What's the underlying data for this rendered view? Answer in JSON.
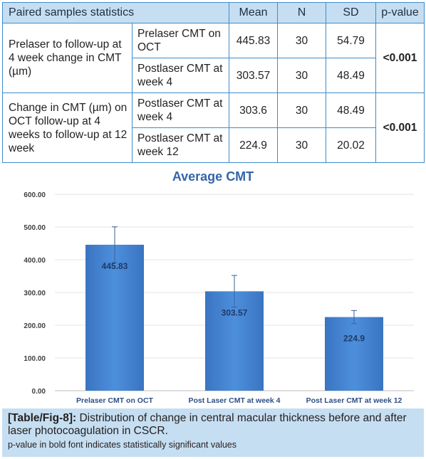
{
  "table": {
    "headers": [
      "Paired samples statistics",
      "Mean",
      "N",
      "SD",
      "p-value"
    ],
    "groups": [
      {
        "label": "Prelaser to follow-up at 4 week change in CMT (µm)",
        "pvalue": "<0.001",
        "rows": [
          {
            "variable": "Prelaser CMT on OCT",
            "mean": "445.83",
            "n": "30",
            "sd": "54.79"
          },
          {
            "variable": "Postlaser CMT at week 4",
            "mean": "303.57",
            "n": "30",
            "sd": "48.49"
          }
        ]
      },
      {
        "label": "Change in CMT (µm) on OCT follow-up at 4 weeks to follow-up at 12 week",
        "pvalue": "<0.001",
        "rows": [
          {
            "variable": "Postlaser CMT at week 4",
            "mean": "303.6",
            "n": "30",
            "sd": "48.49"
          },
          {
            "variable": "Postlaser CMT at week 12",
            "mean": "224.9",
            "n": "30",
            "sd": "20.02"
          }
        ]
      }
    ]
  },
  "chart_data": {
    "type": "bar",
    "title": "Average CMT",
    "categories": [
      "Prelaser CMT on OCT",
      "Post Laser CMT at week 4",
      "Post Laser CMT at week 12"
    ],
    "values": [
      445.83,
      303.57,
      224.9
    ],
    "value_labels": [
      "445.83",
      "303.57",
      "224.9"
    ],
    "error": [
      54.79,
      48.49,
      20.02
    ],
    "ylim": [
      0,
      600
    ],
    "yticks": [
      "0.00",
      "100.00",
      "200.00",
      "300.00",
      "400.00",
      "500.00",
      "600.00"
    ],
    "xlabel": "",
    "ylabel": "",
    "grid": true,
    "bar_color": "#3f7fcf"
  },
  "caption": {
    "ref": "[Table/Fig-8]:",
    "text": " Distribution of change in central macular thickness before and after laser photocoagulation in CSCR.",
    "note": "p-value in bold font indicates statistically significant values"
  }
}
